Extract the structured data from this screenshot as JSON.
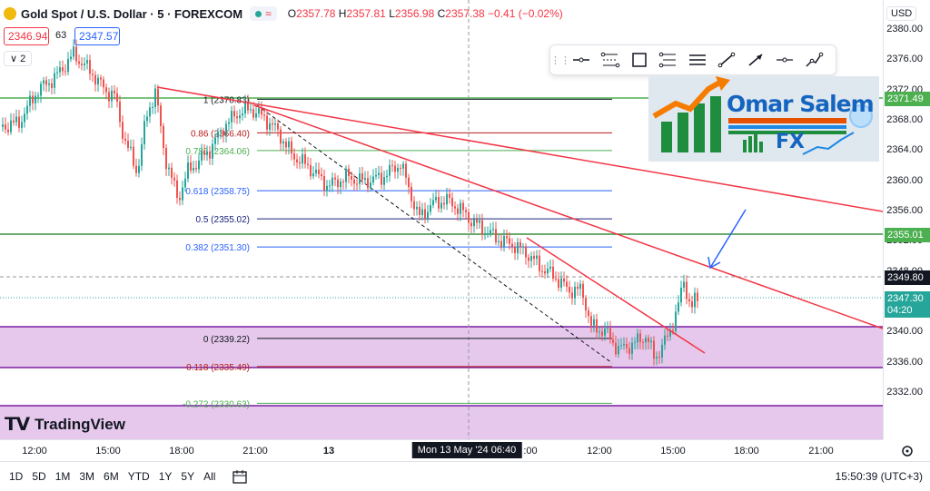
{
  "header": {
    "symbol": "Gold Spot / U.S. Dollar · 5 · FOREXCOM",
    "pill_wave": "≈",
    "ohlc": {
      "o_label": "O",
      "o": "2357.78",
      "h_label": "H",
      "h": "2357.81",
      "l_label": "L",
      "l": "2356.98",
      "c_label": "C",
      "c": "2357.38",
      "change": "−0.41 (−0.02%)"
    },
    "sell_price": "2346.94",
    "spread": "63",
    "buy_price": "2347.57",
    "indicators_toggle": "∨ 2"
  },
  "toolbar": {
    "tools": [
      "horizontal-line",
      "fib-retracement",
      "rectangle",
      "pitchfork",
      "parallel-channel",
      "trend-line",
      "arrow",
      "horizontal-ray",
      "path"
    ]
  },
  "fib_levels": [
    {
      "label": "1 (2370.83)",
      "price": 2370.83,
      "color": "#131722"
    },
    {
      "label": "0.86 (2366.40)",
      "price": 2366.4,
      "color": "#b71c1c"
    },
    {
      "label": "0.786 (2364.06)",
      "price": 2364.06,
      "color": "#4caf50"
    },
    {
      "label": "0.618 (2358.75)",
      "price": 2358.75,
      "color": "#2962ff"
    },
    {
      "label": "0.5 (2355.02)",
      "price": 2355.02,
      "color": "#1a237e"
    },
    {
      "label": "0.382 (2351.30)",
      "price": 2351.3,
      "color": "#2962ff"
    },
    {
      "label": "0 (2339.22)",
      "price": 2339.22,
      "color": "#131722"
    },
    {
      "label": "-0.118 (2335.49)",
      "price": 2335.49,
      "color": "#b71c1c"
    },
    {
      "label": "-0.272 (2330.63)",
      "price": 2330.63,
      "color": "#4caf50"
    }
  ],
  "price_axis": {
    "currency_button": "USD",
    "ticks": [
      "2380.00",
      "2376.00",
      "2372.00",
      "2368.00",
      "2364.00",
      "2360.00",
      "2356.00",
      "2352.00",
      "2348.00",
      "2344.00",
      "2340.00",
      "2336.00",
      "2332.00"
    ],
    "tags": [
      {
        "text": "2371.49",
        "bg": "#4caf50"
      },
      {
        "text": "2355.01",
        "bg": "#4caf50"
      },
      {
        "text": "2349.80",
        "bg": "#131722"
      },
      {
        "text": "2347.30",
        "bg": "#26a69a"
      },
      {
        "text": "04:20",
        "bg": "#26a69a"
      }
    ]
  },
  "time_axis": {
    "ticks": [
      "12:00",
      "15:00",
      "18:00",
      "21:00",
      "13",
      "12:00",
      "15:00",
      "18:00",
      "21:00"
    ],
    "crosshair_label": "Mon 13 May '24   06:40",
    "partial_label": ":00"
  },
  "watermark": {
    "text": "TradingView"
  },
  "brand": {
    "name_line1": "Omar Salem",
    "name_line2": "FX"
  },
  "bottom_bar": {
    "timeframes": [
      "1D",
      "5D",
      "1M",
      "3M",
      "6M",
      "YTD",
      "1Y",
      "5Y",
      "All"
    ],
    "clock": "15:50:39 (UTC+3)"
  },
  "colors": {
    "up": "#26a69a",
    "down": "#ef5350",
    "zone": "#e1bee7",
    "trend": "#f23645",
    "support": "#4caf50",
    "zone_border": "#7b1fa2"
  }
}
